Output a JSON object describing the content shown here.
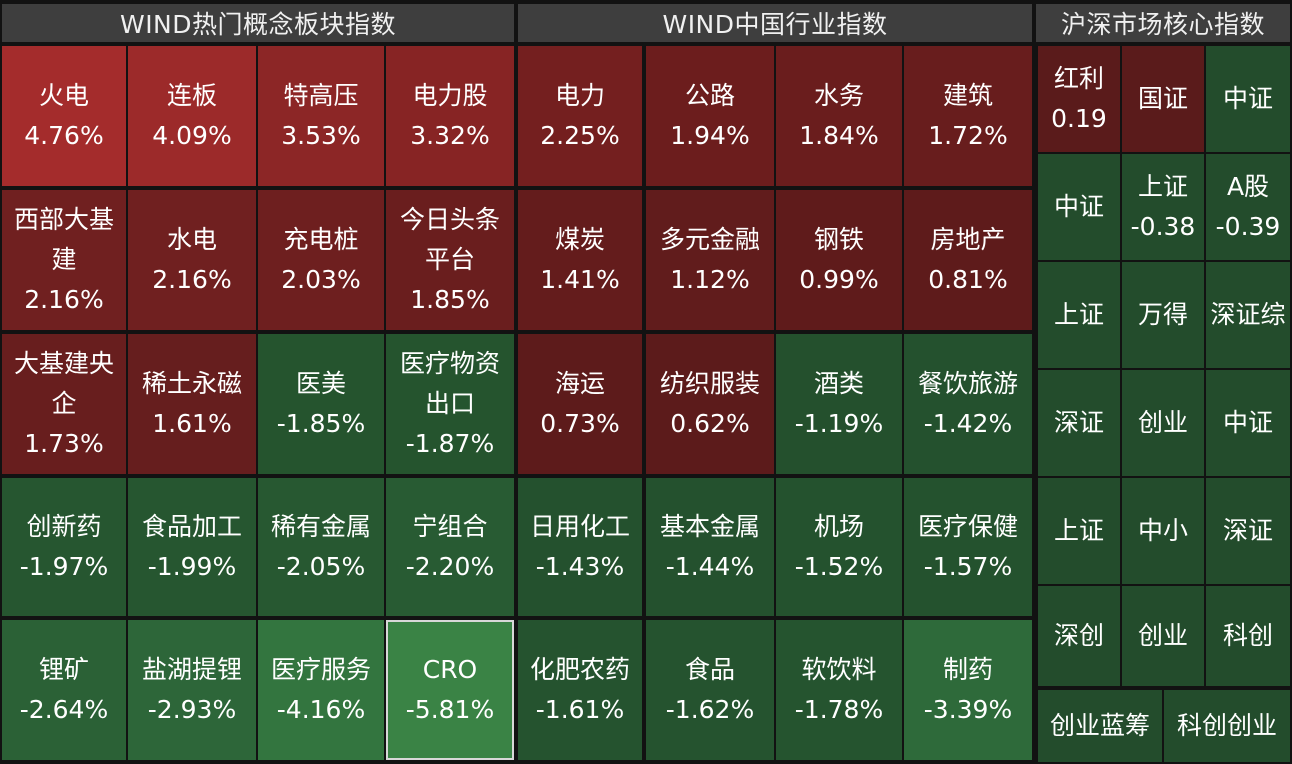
{
  "headers": {
    "concept": "WIND热门概念板块指数",
    "industry": "WIND中国行业指数",
    "core": "沪深市场核心指数"
  },
  "concept_tiles": [
    {
      "name": "火电",
      "pct": "4.76%",
      "color": "#a42c2c"
    },
    {
      "name": "连板",
      "pct": "4.09%",
      "color": "#9c2a2a"
    },
    {
      "name": "特高压",
      "pct": "3.53%",
      "color": "#8c2626"
    },
    {
      "name": "电力股",
      "pct": "3.32%",
      "color": "#872424"
    },
    {
      "name": "西部大基建",
      "pct": "2.16%",
      "color": "#702020"
    },
    {
      "name": "水电",
      "pct": "2.16%",
      "color": "#702020"
    },
    {
      "name": "充电桩",
      "pct": "2.03%",
      "color": "#6e1f1f"
    },
    {
      "name": "今日头条平台",
      "pct": "1.85%",
      "color": "#6a1e1e"
    },
    {
      "name": "大基建央企",
      "pct": "1.73%",
      "color": "#681e1e"
    },
    {
      "name": "稀土永磁",
      "pct": "1.61%",
      "color": "#661e1e"
    },
    {
      "name": "医美",
      "pct": "-1.85%",
      "color": "#25542e"
    },
    {
      "name": "医疗物资出口",
      "pct": "-1.87%",
      "color": "#25542e"
    },
    {
      "name": "创新药",
      "pct": "-1.97%",
      "color": "#265630"
    },
    {
      "name": "食品加工",
      "pct": "-1.99%",
      "color": "#265630"
    },
    {
      "name": "稀有金属",
      "pct": "-2.05%",
      "color": "#275831"
    },
    {
      "name": "宁组合",
      "pct": "-2.20%",
      "color": "#285b33"
    },
    {
      "name": "锂矿",
      "pct": "-2.64%",
      "color": "#2b6136"
    },
    {
      "name": "盐湖提锂",
      "pct": "-2.93%",
      "color": "#2d6639"
    },
    {
      "name": "医疗服务",
      "pct": "-4.16%",
      "color": "#33753f"
    },
    {
      "name": "CRO",
      "pct": "-5.81%",
      "color": "#3a8345"
    }
  ],
  "industry_tiles": [
    {
      "name": "电力",
      "pct": "2.25%",
      "color": "#741f1f"
    },
    {
      "name": "公路",
      "pct": "1.94%",
      "color": "#6c1d1d"
    },
    {
      "name": "水务",
      "pct": "1.84%",
      "color": "#6a1d1d"
    },
    {
      "name": "建筑",
      "pct": "1.72%",
      "color": "#681d1d"
    },
    {
      "name": "煤炭",
      "pct": "1.41%",
      "color": "#641c1c"
    },
    {
      "name": "多元金融",
      "pct": "1.12%",
      "color": "#611c1c"
    },
    {
      "name": "钢铁",
      "pct": "0.99%",
      "color": "#5f1b1b"
    },
    {
      "name": "房地产",
      "pct": "0.81%",
      "color": "#5e1b1b"
    },
    {
      "name": "海运",
      "pct": "0.73%",
      "color": "#5d1b1b"
    },
    {
      "name": "纺织服装",
      "pct": "0.62%",
      "color": "#5c1b1b"
    },
    {
      "name": "酒类",
      "pct": "-1.19%",
      "color": "#24502d"
    },
    {
      "name": "餐饮旅游",
      "pct": "-1.42%",
      "color": "#24512e"
    },
    {
      "name": "日用化工",
      "pct": "-1.43%",
      "color": "#24512e"
    },
    {
      "name": "基本金属",
      "pct": "-1.44%",
      "color": "#24512e"
    },
    {
      "name": "机场",
      "pct": "-1.52%",
      "color": "#24522e"
    },
    {
      "name": "医疗保健",
      "pct": "-1.57%",
      "color": "#24522e"
    },
    {
      "name": "化肥农药",
      "pct": "-1.61%",
      "color": "#25532f"
    },
    {
      "name": "食品",
      "pct": "-1.62%",
      "color": "#25532f"
    },
    {
      "name": "软饮料",
      "pct": "-1.78%",
      "color": "#25542f"
    },
    {
      "name": "制药",
      "pct": "-3.39%",
      "color": "#2e6a3a"
    }
  ],
  "core_tiles": [
    {
      "name": "红利",
      "pct": "0.19",
      "color": "#5a1b1b"
    },
    {
      "name": "国证",
      "pct": "",
      "color": "#5a1b1b"
    },
    {
      "name": "中证",
      "pct": "",
      "color": "#234c2c"
    },
    {
      "name": "中证",
      "pct": "",
      "color": "#234c2c"
    },
    {
      "name": "上证",
      "pct": "-0.38",
      "color": "#234c2c"
    },
    {
      "name": "A股",
      "pct": "-0.39",
      "color": "#234c2c"
    },
    {
      "name": "上证",
      "pct": "",
      "color": "#234c2c"
    },
    {
      "name": "万得",
      "pct": "",
      "color": "#234c2c"
    },
    {
      "name": "深证综",
      "pct": "",
      "color": "#234c2c"
    },
    {
      "name": "深证",
      "pct": "",
      "color": "#234c2c"
    },
    {
      "name": "创业",
      "pct": "",
      "color": "#234c2c"
    },
    {
      "name": "中证",
      "pct": "",
      "color": "#234c2c"
    },
    {
      "name": "上证",
      "pct": "",
      "color": "#234c2c"
    },
    {
      "name": "中小",
      "pct": "",
      "color": "#234c2c"
    },
    {
      "name": "深证",
      "pct": "",
      "color": "#234c2c"
    },
    {
      "name": "深创",
      "pct": "",
      "color": "#234c2c"
    },
    {
      "name": "创业",
      "pct": "",
      "color": "#234c2c"
    },
    {
      "name": "科创",
      "pct": "",
      "color": "#234c2c"
    },
    {
      "name": "创业蓝筹",
      "pct": "",
      "color": "#234c2c"
    },
    {
      "name": "科创创业",
      "pct": "",
      "color": "#234c2c"
    }
  ],
  "selected_tile": "CRO"
}
